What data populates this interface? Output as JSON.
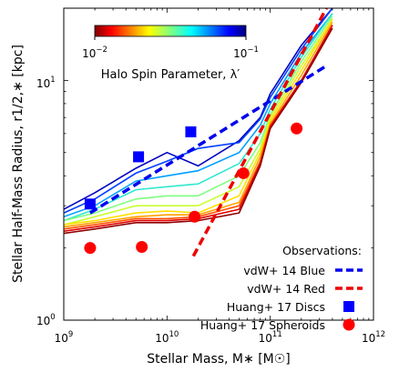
{
  "chart_data": {
    "type": "line",
    "xlabel": "Stellar Mass, M∗ [M☉]",
    "ylabel": "Stellar Half-Mass Radius, r1/2,∗ [kpc]",
    "xscale": "log",
    "yscale": "log",
    "xlim": [
      1000000000,
      1000000000000
    ],
    "ylim": [
      1,
      20
    ],
    "x_ticks": [
      {
        "value": 1000000000,
        "base": "10",
        "exp": "9"
      },
      {
        "value": 10000000000,
        "base": "10",
        "exp": "10"
      },
      {
        "value": 100000000000,
        "base": "10",
        "exp": "11"
      },
      {
        "value": 1000000000000,
        "base": "10",
        "exp": "12"
      }
    ],
    "y_ticks": [
      {
        "value": 1,
        "label": "10",
        "exp": "0"
      },
      {
        "value": 10,
        "label": "10",
        "exp": "1"
      }
    ],
    "colorbar": {
      "label": "Halo Spin Parameter, λ′",
      "colormap": "jet",
      "scale": "log",
      "range": [
        0.01,
        0.1
      ],
      "ticks": [
        {
          "value": 0.01,
          "base": "10",
          "exp": "−2"
        },
        {
          "value": 0.1,
          "base": "10",
          "exp": "−1"
        }
      ]
    },
    "model_x": [
      1000000000,
      2000000000,
      5000000000,
      10000000000,
      20000000000,
      50000000000,
      80000000000,
      100000000000,
      200000000000,
      400000000000
    ],
    "model_series": [
      {
        "color": "#0000c0",
        "values": [
          2.9,
          3.4,
          4.3,
          5.0,
          4.4,
          5.6,
          7.0,
          8.8,
          14.0,
          20.0
        ]
      },
      {
        "color": "#0040ff",
        "values": [
          2.8,
          3.2,
          4.1,
          4.6,
          5.2,
          5.5,
          6.9,
          8.5,
          13.5,
          20.0
        ]
      },
      {
        "color": "#00a0ff",
        "values": [
          2.7,
          3.0,
          3.8,
          4.0,
          4.2,
          5.0,
          6.5,
          8.0,
          13.0,
          19.0
        ]
      },
      {
        "color": "#30e8d0",
        "values": [
          2.6,
          2.9,
          3.5,
          3.6,
          3.7,
          4.5,
          6.0,
          7.6,
          12.5,
          19.0
        ]
      },
      {
        "color": "#80ff80",
        "values": [
          2.6,
          2.8,
          3.2,
          3.3,
          3.3,
          4.0,
          5.5,
          7.2,
          12.0,
          18.5
        ]
      },
      {
        "color": "#c8ff30",
        "values": [
          2.5,
          2.7,
          3.0,
          3.0,
          3.0,
          3.6,
          5.2,
          7.0,
          11.5,
          18.0
        ]
      },
      {
        "color": "#ffe000",
        "values": [
          2.5,
          2.6,
          2.8,
          2.85,
          2.8,
          3.3,
          5.0,
          6.8,
          11.0,
          18.0
        ]
      },
      {
        "color": "#ffa000",
        "values": [
          2.45,
          2.55,
          2.7,
          2.75,
          2.75,
          3.1,
          4.8,
          6.6,
          10.5,
          17.5
        ]
      },
      {
        "color": "#ff5000",
        "values": [
          2.4,
          2.5,
          2.65,
          2.65,
          2.7,
          3.0,
          4.6,
          6.5,
          10.0,
          17.0
        ]
      },
      {
        "color": "#e00000",
        "values": [
          2.35,
          2.45,
          2.6,
          2.6,
          2.65,
          2.9,
          4.5,
          6.4,
          10.0,
          17.0
        ]
      },
      {
        "color": "#900000",
        "values": [
          2.3,
          2.4,
          2.55,
          2.55,
          2.6,
          2.8,
          4.4,
          6.3,
          9.8,
          16.5
        ]
      }
    ],
    "obs_blue_line": {
      "x": [
        1800000000,
        350000000000
      ],
      "y": [
        2.8,
        11.5
      ],
      "color": "#0000ee"
    },
    "obs_red_line": {
      "x": [
        18000000000,
        350000000000
      ],
      "y": [
        1.85,
        20.0
      ],
      "color": "#ee0000"
    },
    "obs_disc_points": {
      "x": [
        1800000000,
        5300000000,
        17000000000
      ],
      "y": [
        3.05,
        4.8,
        6.1
      ],
      "color": "#0000ff"
    },
    "obs_spheroid_points": {
      "x": [
        1800000000,
        5700000000,
        18500000000,
        55000000000,
        180000000000
      ],
      "y": [
        2.0,
        2.02,
        2.7,
        4.1,
        6.3
      ],
      "color": "#ff0000"
    },
    "legend": {
      "position": "lower-right",
      "title": "Observations:",
      "entries": [
        {
          "label": "vdW+ 14 Blue",
          "marker": "dashed-line",
          "color": "#0000ee"
        },
        {
          "label": "vdW+ 14 Red",
          "marker": "dashed-line",
          "color": "#ee0000"
        },
        {
          "label": "Huang+ 17 Discs",
          "marker": "square",
          "color": "#0000ff"
        },
        {
          "label": "Huang+ 17 Spheroids",
          "marker": "circle",
          "color": "#ff0000"
        }
      ]
    }
  }
}
